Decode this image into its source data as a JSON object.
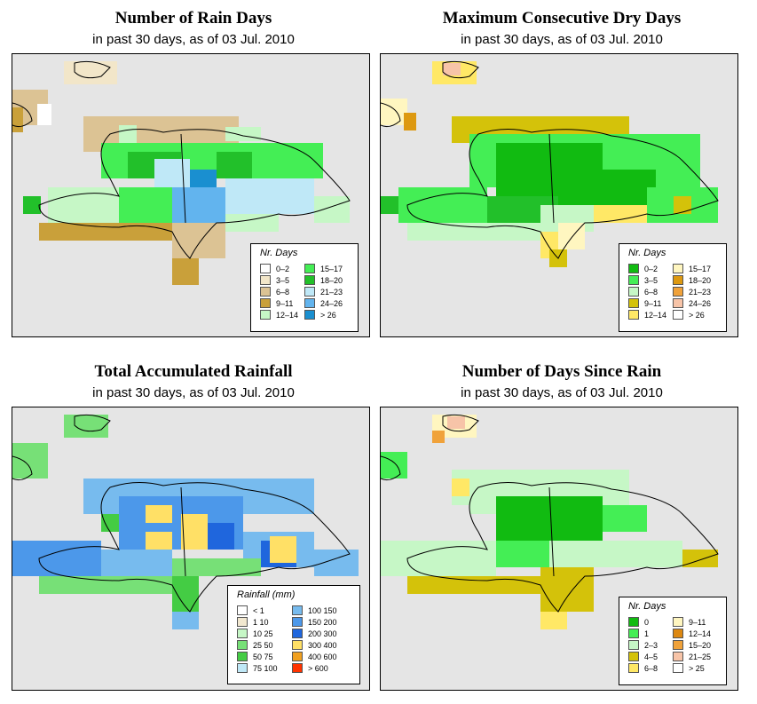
{
  "panels": [
    {
      "id": "rain-days",
      "title": "Number of Rain Days",
      "subtitle": "in past 30 days, as of  03 Jul. 2010",
      "legend": {
        "title": "Nr. Days",
        "columns": [
          [
            {
              "label": "0–2",
              "color": "#ffffff"
            },
            {
              "label": "3–5",
              "color": "#f2e6c9"
            },
            {
              "label": "6–8",
              "color": "#dcc394"
            },
            {
              "label": "9–11",
              "color": "#c9a03a"
            },
            {
              "label": "12–14",
              "color": "#c6f7c6"
            }
          ],
          [
            {
              "label": "15–17",
              "color": "#44ee55"
            },
            {
              "label": "18–20",
              "color": "#22c02a"
            },
            {
              "label": "21–23",
              "color": "#bfe8f7"
            },
            {
              "label": "24–26",
              "color": "#62b4ee"
            },
            {
              "label": "> 26",
              "color": "#1a8fd0"
            }
          ]
        ]
      }
    },
    {
      "id": "max-dry-days",
      "title": "Maximum Consecutive Dry Days",
      "subtitle": "in past 30 days, as of  03 Jul. 2010",
      "legend": {
        "title": "Nr. Days",
        "columns": [
          [
            {
              "label": "0–2",
              "color": "#11bb11"
            },
            {
              "label": "3–5",
              "color": "#44ee55"
            },
            {
              "label": "6–8",
              "color": "#c6f7c6"
            },
            {
              "label": "9–11",
              "color": "#d4c20a"
            },
            {
              "label": "12–14",
              "color": "#ffe866"
            }
          ],
          [
            {
              "label": "15–17",
              "color": "#fff6c0"
            },
            {
              "label": "18–20",
              "color": "#dd9911"
            },
            {
              "label": "21–23",
              "color": "#f0a23a"
            },
            {
              "label": "24–26",
              "color": "#f7c4a8"
            },
            {
              "label": "> 26",
              "color": "#ffffff"
            }
          ]
        ]
      }
    },
    {
      "id": "total-rainfall",
      "title": "Total Accumulated Rainfall",
      "subtitle": "in past 30 days, as of  03 Jul. 2010",
      "legend": {
        "title": "Rainfall (mm)",
        "columns": [
          [
            {
              "label": "< 1",
              "color": "#ffffff"
            },
            {
              "label": "1    10",
              "color": "#f2e8d0"
            },
            {
              "label": "10    25",
              "color": "#c6f7c6"
            },
            {
              "label": "25    50",
              "color": "#77e077"
            },
            {
              "label": "50    75",
              "color": "#44cc44"
            },
            {
              "label": "75   100",
              "color": "#bfe8f7"
            }
          ],
          [
            {
              "label": "100   150",
              "color": "#77bbee"
            },
            {
              "label": "150   200",
              "color": "#4c98ea"
            },
            {
              "label": "200   300",
              "color": "#1f66dd"
            },
            {
              "label": "300   400",
              "color": "#ffe066"
            },
            {
              "label": "400   600",
              "color": "#f0a020"
            },
            {
              "label": "> 600",
              "color": "#ff3300"
            }
          ]
        ]
      }
    },
    {
      "id": "days-since-rain",
      "title": "Number of Days Since Rain",
      "subtitle": "in past 30 days, as of  03 Jul. 2010",
      "legend": {
        "title": "Nr. Days",
        "columns": [
          [
            {
              "label": "0",
              "color": "#11bb11"
            },
            {
              "label": "1",
              "color": "#44ee55"
            },
            {
              "label": "2–3",
              "color": "#c6f7c6"
            },
            {
              "label": "4–5",
              "color": "#d4c20a"
            },
            {
              "label": "6–8",
              "color": "#ffe866"
            }
          ],
          [
            {
              "label": "9–11",
              "color": "#fff6c0"
            },
            {
              "label": "12–14",
              "color": "#dd8811"
            },
            {
              "label": "15–20",
              "color": "#f0a23a"
            },
            {
              "label": "21–25",
              "color": "#f7c4a8"
            },
            {
              "label": "> 25",
              "color": "#ffffff"
            }
          ]
        ]
      }
    }
  ]
}
